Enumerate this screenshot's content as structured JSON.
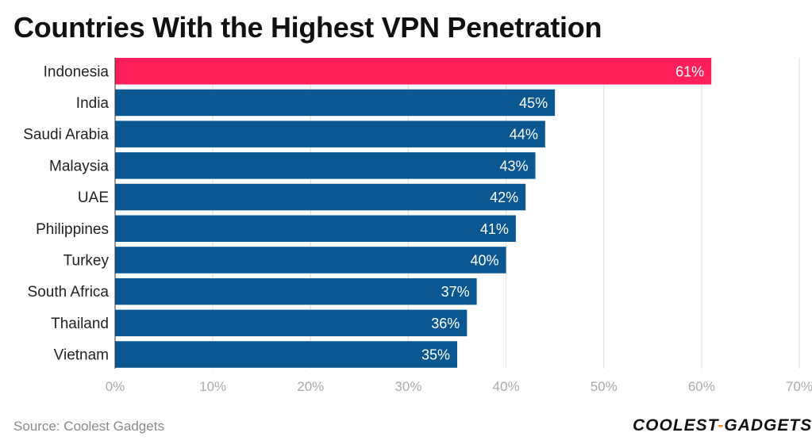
{
  "title": "Countries With the Highest VPN Penetration",
  "source": "Source: Coolest Gadgets",
  "brand": {
    "left": "COOLEST",
    "sep": "-",
    "right": "GADGETS"
  },
  "colors": {
    "highlight": "#ff1f5a",
    "bar": "#0b5791",
    "grid": "#e3e3e3",
    "tick": "#aaaaaa",
    "label": "#222222",
    "value_text": "#ffffff"
  },
  "chart_data": {
    "type": "bar",
    "orientation": "horizontal",
    "title": "Countries With the Highest VPN Penetration",
    "categories": [
      "Indonesia",
      "India",
      "Saudi Arabia",
      "Malaysia",
      "UAE",
      "Philippines",
      "Turkey",
      "South Africa",
      "Thailand",
      "Vietnam"
    ],
    "values": [
      61,
      45,
      44,
      43,
      42,
      41,
      40,
      37,
      36,
      35
    ],
    "value_labels": [
      "61%",
      "45%",
      "44%",
      "43%",
      "42%",
      "41%",
      "40%",
      "37%",
      "36%",
      "35%"
    ],
    "highlight_index": 0,
    "xlim": [
      0,
      70
    ],
    "xticks": [
      0,
      10,
      20,
      30,
      40,
      50,
      60,
      70
    ],
    "xtick_labels": [
      "0%",
      "10%",
      "20%",
      "30%",
      "40%",
      "50%",
      "60%",
      "70%"
    ],
    "xlabel": "",
    "ylabel": "",
    "grid": true
  }
}
